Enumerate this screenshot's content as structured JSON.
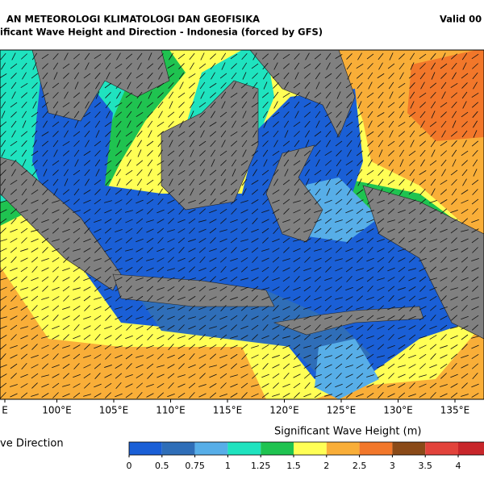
{
  "header": {
    "title_line1": "AN METEOROLOGI KLIMATOLOGI DAN GEOFISIKA",
    "title_line2": "ificant Wave Height and Direction - Indonesia (forced by GFS)",
    "valid": "Valid 00"
  },
  "map": {
    "lon_labels": [
      "E",
      "100°E",
      "105°E",
      "110°E",
      "115°E",
      "120°E",
      "125°E",
      "130°E",
      "135°E"
    ]
  },
  "legend": {
    "direction_label": "ve Direction"
  },
  "colorbar": {
    "title": "Significant Wave Height (m)",
    "ticks": [
      0,
      0.5,
      0.75,
      1,
      1.25,
      1.5,
      2,
      2.5,
      3,
      3.5,
      4
    ],
    "colors": [
      "#1a5fd6",
      "#2f6eb8",
      "#57aee8",
      "#1fe3bf",
      "#1fc350",
      "#ffff55",
      "#f9ae38",
      "#f2772a",
      "#8a4a18",
      "#e2433b",
      "#c8262a"
    ]
  }
}
